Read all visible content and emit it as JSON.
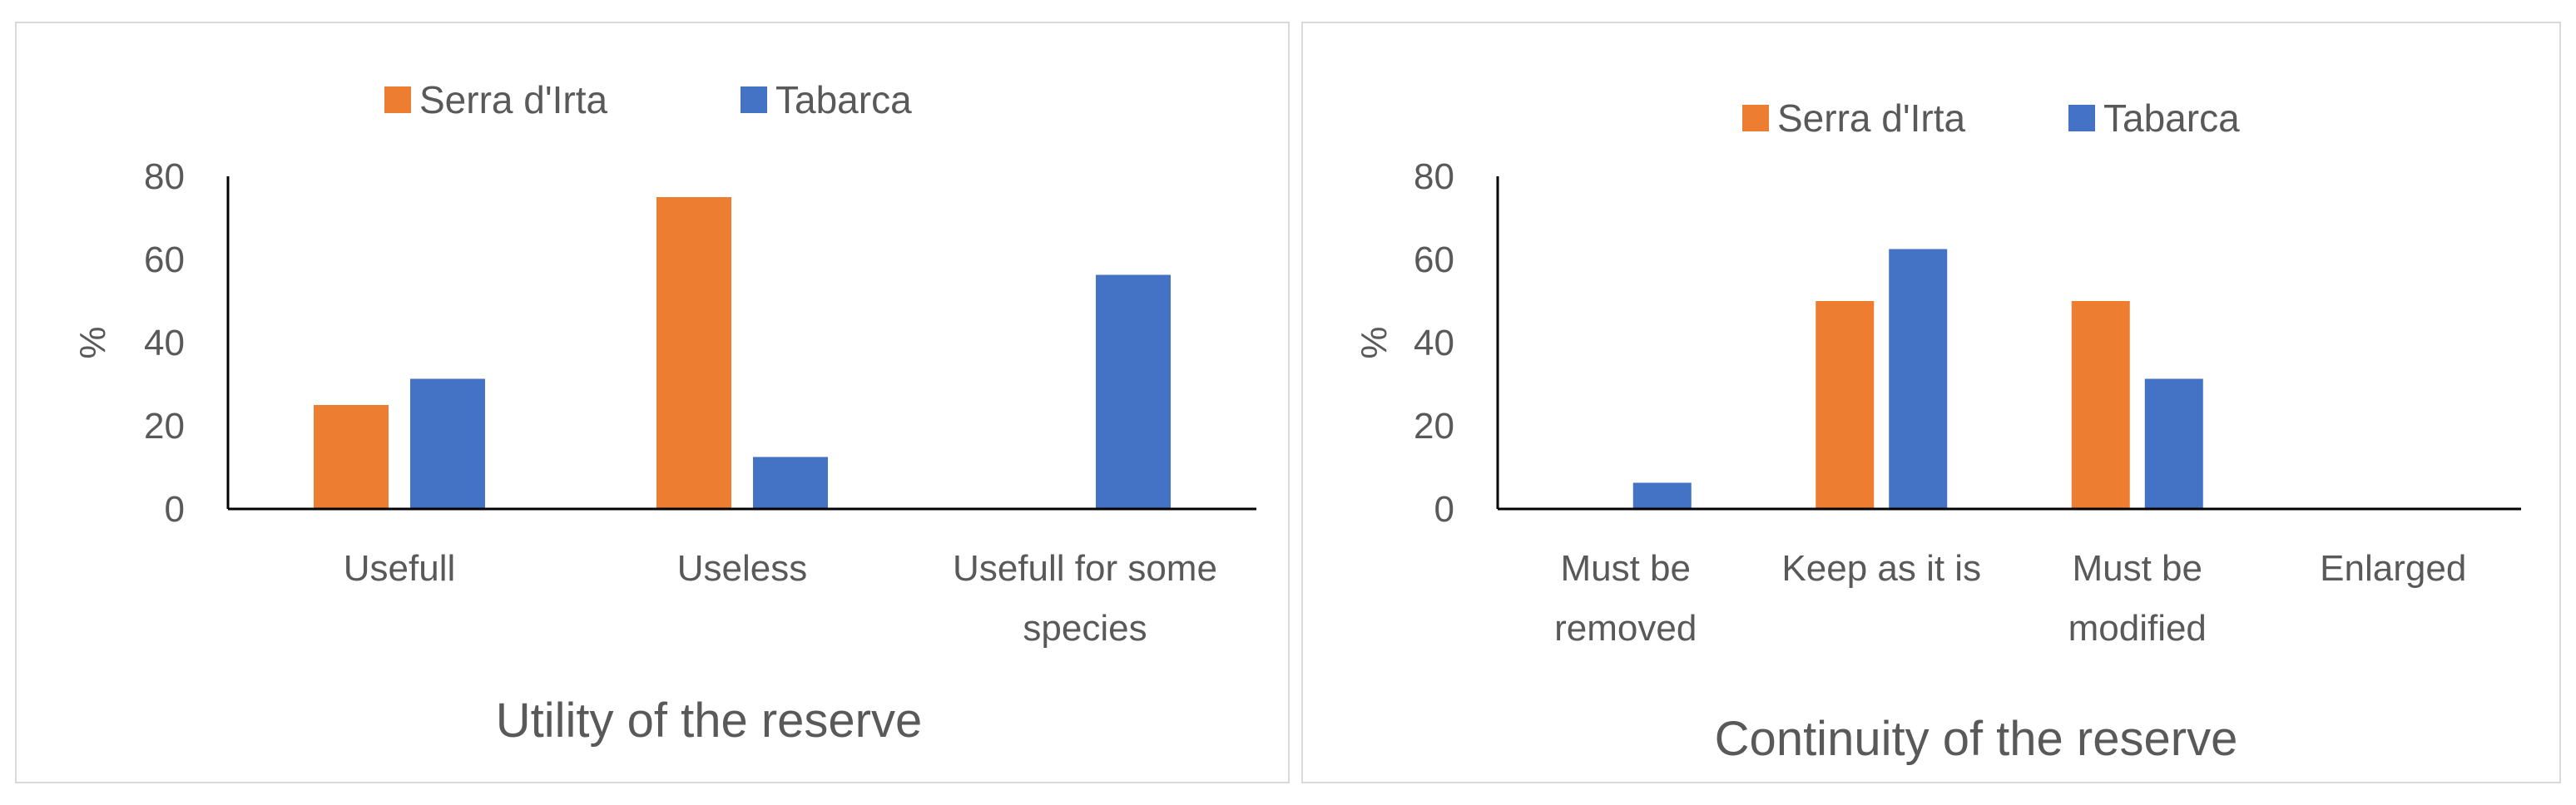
{
  "colors": {
    "serra": "#ED7D31",
    "tabarca": "#4472C4",
    "axis": "#000000",
    "text": "#595959"
  },
  "chart_data": [
    {
      "type": "bar",
      "title": "",
      "xlabel": "Utility of the reserve",
      "ylabel": "%",
      "ylim": [
        0,
        80
      ],
      "yticks": [
        "0",
        "20",
        "40",
        "60",
        "80"
      ],
      "grid": false,
      "legend_position": "top",
      "categories": [
        [
          "Usefull"
        ],
        [
          "Useless"
        ],
        [
          "Usefull for some",
          "species"
        ]
      ],
      "series": [
        {
          "name": "Serra d'Irta",
          "color_key": "serra",
          "values": [
            25,
            75,
            0
          ]
        },
        {
          "name": "Tabarca",
          "color_key": "tabarca",
          "values": [
            31.3,
            12.5,
            56.3
          ]
        }
      ]
    },
    {
      "type": "bar",
      "title": "",
      "xlabel": "Continuity of the reserve",
      "ylabel": "%",
      "ylim": [
        0,
        80
      ],
      "yticks": [
        "0",
        "20",
        "40",
        "60",
        "80"
      ],
      "grid": false,
      "legend_position": "top",
      "categories": [
        [
          "Must be",
          "removed"
        ],
        [
          "Keep as it is"
        ],
        [
          "Must be",
          "modified"
        ],
        [
          "Enlarged"
        ]
      ],
      "series": [
        {
          "name": "Serra d'Irta",
          "color_key": "serra",
          "values": [
            0,
            50,
            50,
            0
          ]
        },
        {
          "name": "Tabarca",
          "color_key": "tabarca",
          "values": [
            6.3,
            62.5,
            31.3,
            0
          ]
        }
      ]
    }
  ]
}
